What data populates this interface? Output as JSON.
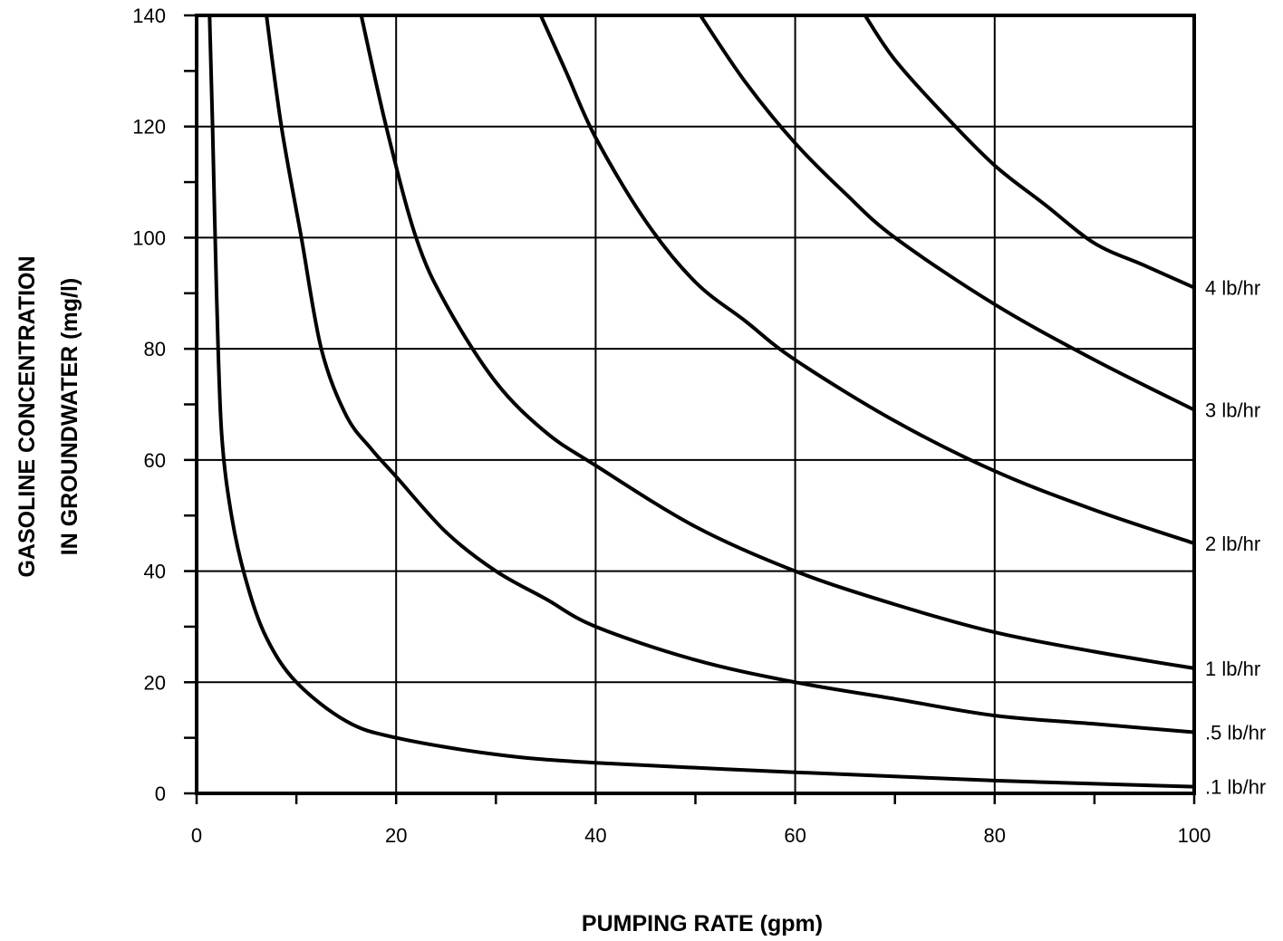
{
  "chart_data": {
    "type": "line",
    "title": "",
    "xlabel": "PUMPING RATE (gpm)",
    "ylabel_line1": "GASOLINE CONCENTRATION",
    "ylabel_line2": "IN GROUNDWATER (mg/l)",
    "xlim": [
      0,
      100
    ],
    "ylim": [
      0,
      140
    ],
    "x_ticks": [
      0,
      20,
      40,
      60,
      80,
      100
    ],
    "y_ticks": [
      0,
      20,
      40,
      60,
      80,
      100,
      120,
      140
    ],
    "x_tick_labels": [
      "0",
      "20",
      "40",
      "60",
      "80",
      "100"
    ],
    "y_tick_labels": [
      "0",
      "20",
      "40",
      "60",
      "80",
      "100",
      "120",
      "140"
    ],
    "grid": true,
    "legend": "labels at right end of each curve",
    "series": [
      {
        "name": ".1 lb/hr",
        "values": [
          [
            1.3,
            140
          ],
          [
            1.6,
            120
          ],
          [
            2.0,
            90
          ],
          [
            2.5,
            65
          ],
          [
            3.5,
            50
          ],
          [
            5.0,
            38
          ],
          [
            7.0,
            28
          ],
          [
            10.0,
            20
          ],
          [
            15.0,
            13
          ],
          [
            20.0,
            10
          ],
          [
            30.0,
            7
          ],
          [
            40.0,
            5.5
          ],
          [
            60.0,
            3.8
          ],
          [
            80.0,
            2.3
          ],
          [
            100.0,
            1.2
          ]
        ]
      },
      {
        "name": ".5 lb/hr",
        "values": [
          [
            7.0,
            140
          ],
          [
            8.5,
            120
          ],
          [
            10.5,
            100
          ],
          [
            12.5,
            80
          ],
          [
            15.0,
            68
          ],
          [
            17.5,
            62
          ],
          [
            20.0,
            57
          ],
          [
            25.0,
            47
          ],
          [
            30.0,
            40
          ],
          [
            35.0,
            35
          ],
          [
            40.0,
            30
          ],
          [
            50.0,
            24
          ],
          [
            60.0,
            20
          ],
          [
            70.0,
            17
          ],
          [
            80.0,
            14
          ],
          [
            90.0,
            12.5
          ],
          [
            100.0,
            11
          ]
        ]
      },
      {
        "name": "1 lb/hr",
        "values": [
          [
            16.5,
            140
          ],
          [
            19.0,
            120
          ],
          [
            22.0,
            100
          ],
          [
            25.0,
            88
          ],
          [
            30.0,
            74
          ],
          [
            35.0,
            65
          ],
          [
            40.0,
            59
          ],
          [
            50.0,
            48
          ],
          [
            60.0,
            40
          ],
          [
            70.0,
            34
          ],
          [
            80.0,
            29
          ],
          [
            90.0,
            25.5
          ],
          [
            100.0,
            22.5
          ]
        ]
      },
      {
        "name": "2 lb/hr",
        "values": [
          [
            34.5,
            140
          ],
          [
            37.0,
            130
          ],
          [
            40.0,
            118
          ],
          [
            45.0,
            103
          ],
          [
            50.0,
            92
          ],
          [
            55.0,
            85
          ],
          [
            60.0,
            78
          ],
          [
            70.0,
            67
          ],
          [
            80.0,
            58
          ],
          [
            90.0,
            51
          ],
          [
            100.0,
            45
          ]
        ]
      },
      {
        "name": "3 lb/hr",
        "values": [
          [
            50.5,
            140
          ],
          [
            55.0,
            128
          ],
          [
            60.0,
            117
          ],
          [
            65.0,
            108
          ],
          [
            70.0,
            100
          ],
          [
            80.0,
            88
          ],
          [
            90.0,
            78
          ],
          [
            100.0,
            69
          ]
        ]
      },
      {
        "name": "4 lb/hr",
        "values": [
          [
            67.0,
            140
          ],
          [
            70.0,
            132
          ],
          [
            75.0,
            122
          ],
          [
            80.0,
            113
          ],
          [
            85.0,
            106
          ],
          [
            90.0,
            99
          ],
          [
            95.0,
            95
          ],
          [
            100.0,
            91
          ]
        ]
      }
    ]
  }
}
